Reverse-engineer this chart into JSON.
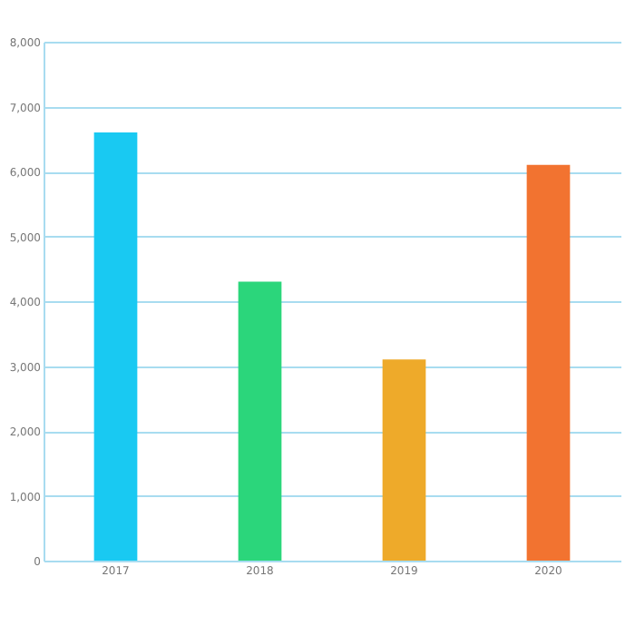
{
  "chart_data": {
    "type": "bar",
    "categories": [
      "2017",
      "2018",
      "2019",
      "2020"
    ],
    "values": [
      6600,
      4300,
      3100,
      6100
    ],
    "colors": [
      "#19c9f2",
      "#2bd67b",
      "#eeaa2a",
      "#f27330"
    ],
    "ylim": [
      0,
      8000
    ],
    "yticks": [
      0,
      {
        "value": 1000,
        "label": "1,000"
      },
      {
        "value": 2000,
        "label": "2,000"
      },
      {
        "value": 3000,
        "label": "3,000"
      },
      {
        "value": 4000,
        "label": "4,000"
      },
      {
        "value": 5000,
        "label": "5,000"
      },
      {
        "value": 6000,
        "label": "6,000"
      },
      {
        "value": 7000,
        "label": "7,000"
      },
      {
        "value": 8000,
        "label": "8,000"
      }
    ],
    "grid": "y"
  }
}
